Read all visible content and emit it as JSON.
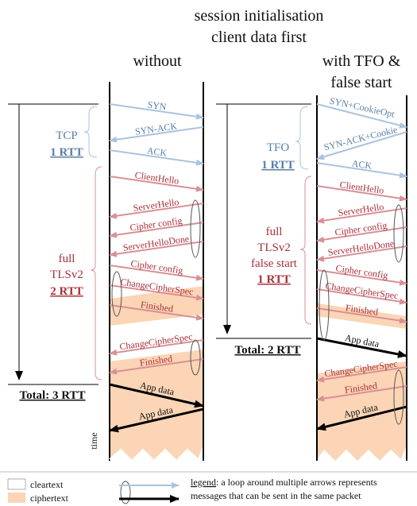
{
  "header": {
    "line1": "session initialisation",
    "line2": "client data first",
    "without": "without",
    "with_line1": "with TFO &",
    "with_line2": "false start"
  },
  "left": {
    "tcp_label": "TCP",
    "tcp_rtt": "1 RTT",
    "tls_label1": "full",
    "tls_label2": "TLSv2",
    "tls_rtt": "2 RTT",
    "total": "Total: 3 RTT",
    "time_label": "time",
    "messages": [
      "SYN",
      "SYN-ACK",
      "ACK",
      "ClientHello",
      "ServerHello",
      "Cipher config",
      "ServerHelloDone",
      "Cipher config",
      "ChangeCipherSpec",
      "Finished",
      "ChangeCipherSpec",
      "Finished",
      "App data",
      "App data"
    ]
  },
  "right": {
    "tfo_label": "TFO",
    "tfo_rtt": "1 RTT",
    "tls_label1": "full",
    "tls_label2": "TLSv2",
    "tls_label3": "false start",
    "tls_rtt": "1 RTT",
    "total": "Total: 2 RTT",
    "messages": [
      "SYN+CookieOpt",
      "SYN-ACK+Cookie",
      "ACK",
      "ClientHello",
      "ServerHello",
      "Cipher config",
      "ServerHelloDone",
      "Cipher config",
      "ChangeCipherSpec",
      "Finished",
      "App data",
      "ChangeCipherSpec",
      "Finished",
      "App data"
    ]
  },
  "legend": {
    "cleartext": "cleartext",
    "ciphertext": "ciphertext",
    "title": "legend",
    "text1": ": a loop around multiple arrows represents",
    "text2": "messages that can be sent in the same packet"
  },
  "colors": {
    "blue": "#a9c3e0",
    "red": "#d89096",
    "black": "#000000",
    "cipher": "#fbd5b5"
  }
}
